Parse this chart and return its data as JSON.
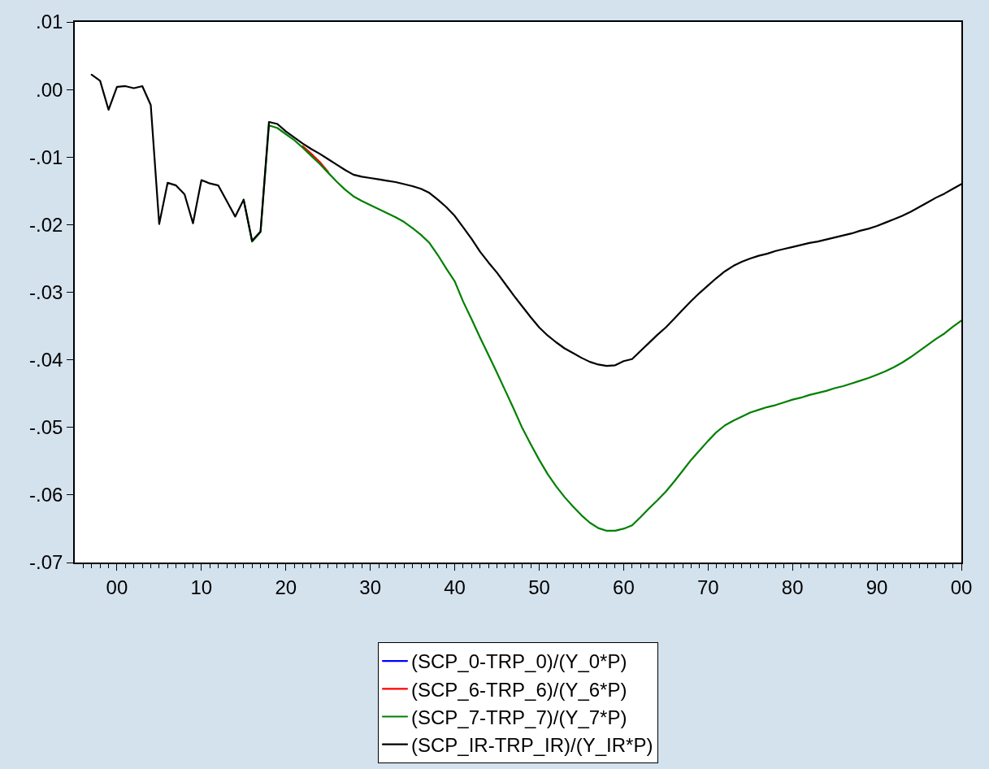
{
  "chart_data": {
    "type": "line",
    "x": [
      1997,
      1998,
      1999,
      2000,
      2001,
      2002,
      2003,
      2004,
      2005,
      2006,
      2007,
      2008,
      2009,
      2010,
      2011,
      2012,
      2013,
      2014,
      2015,
      2016,
      2017,
      2018,
      2019,
      2020,
      2021,
      2022,
      2023,
      2024,
      2025,
      2026,
      2027,
      2028,
      2029,
      2030,
      2031,
      2032,
      2033,
      2034,
      2035,
      2036,
      2037,
      2038,
      2039,
      2040,
      2041,
      2042,
      2043,
      2044,
      2045,
      2046,
      2047,
      2048,
      2049,
      2050,
      2051,
      2052,
      2053,
      2054,
      2055,
      2056,
      2057,
      2058,
      2059,
      2060,
      2061,
      2062,
      2063,
      2064,
      2065,
      2066,
      2067,
      2068,
      2069,
      2070,
      2071,
      2072,
      2073,
      2074,
      2075,
      2076,
      2077,
      2078,
      2079,
      2080,
      2081,
      2082,
      2083,
      2084,
      2085,
      2086,
      2087,
      2088,
      2089,
      2090,
      2091,
      2092,
      2093,
      2094,
      2095,
      2096,
      2097,
      2098,
      2099,
      2100
    ],
    "series": [
      {
        "name": "(SCP_0-TRP_0)/(Y_0*P)",
        "color": "#0000ff",
        "values": [
          null,
          null,
          null,
          null,
          null,
          null,
          null,
          null,
          null,
          null,
          null,
          null,
          null,
          null,
          null,
          null,
          null,
          null,
          null,
          null,
          null,
          null,
          null,
          null,
          null,
          null,
          null,
          null,
          null,
          null,
          null,
          null,
          null,
          null,
          null,
          null,
          null,
          null,
          null,
          null,
          null,
          null,
          null,
          null,
          null,
          null,
          null,
          null,
          null,
          null,
          null,
          null,
          null,
          null,
          null,
          null,
          null,
          null,
          null,
          null,
          null,
          null,
          null,
          null,
          null,
          null,
          null,
          null,
          null,
          null,
          null,
          null,
          null,
          null,
          null,
          null,
          null,
          null,
          null,
          null,
          null,
          null,
          null,
          null,
          null,
          null,
          null,
          null,
          null,
          null,
          null,
          null,
          null,
          null,
          null,
          null,
          null,
          null,
          null,
          null,
          null,
          null,
          null,
          null
        ]
      },
      {
        "name": "(SCP_6-TRP_6)/(Y_6*P)",
        "color": "#ff0000",
        "values": [
          null,
          null,
          null,
          null,
          null,
          null,
          null,
          null,
          null,
          null,
          null,
          null,
          null,
          null,
          null,
          null,
          null,
          null,
          null,
          null,
          null,
          null,
          null,
          null,
          null,
          -0.0084,
          -0.0095,
          -0.0107,
          -0.0122,
          null,
          null,
          null,
          null,
          null,
          null,
          null,
          null,
          null,
          null,
          null,
          null,
          null,
          null,
          null,
          null,
          null,
          null,
          null,
          null,
          null,
          null,
          null,
          null,
          null,
          null,
          null,
          null,
          null,
          null,
          null,
          null,
          null,
          null,
          null,
          null,
          null,
          null,
          null,
          null,
          null,
          null,
          null,
          null,
          null,
          null,
          null,
          null,
          null,
          null,
          null,
          null,
          null,
          null,
          null,
          null,
          null,
          null,
          null,
          null,
          null,
          null,
          null,
          null,
          null,
          null,
          null,
          null,
          null,
          null,
          null,
          null,
          null,
          null,
          null
        ]
      },
      {
        "name": "(SCP_7-TRP_7)/(Y_7*P)",
        "color": "#008000",
        "values": [
          null,
          null,
          null,
          null,
          null,
          null,
          null,
          null,
          null,
          null,
          null,
          null,
          null,
          null,
          null,
          null,
          null,
          null,
          -0.0163,
          -0.0225,
          -0.0211,
          -0.0053,
          -0.0057,
          -0.0066,
          -0.0075,
          -0.0086,
          -0.0098,
          -0.011,
          -0.0123,
          -0.0136,
          -0.0148,
          -0.0158,
          -0.0165,
          -0.0171,
          -0.0177,
          -0.0183,
          -0.0189,
          -0.0196,
          -0.0205,
          -0.0215,
          -0.0227,
          -0.0245,
          -0.0265,
          -0.0284,
          -0.0314,
          -0.034,
          -0.0367,
          -0.0393,
          -0.0419,
          -0.0446,
          -0.0473,
          -0.0501,
          -0.0525,
          -0.0548,
          -0.0569,
          -0.0587,
          -0.0603,
          -0.0617,
          -0.063,
          -0.0641,
          -0.0649,
          -0.0653,
          -0.0653,
          -0.065,
          -0.0645,
          -0.0633,
          -0.062,
          -0.0608,
          -0.0595,
          -0.058,
          -0.0564,
          -0.0548,
          -0.0534,
          -0.052,
          -0.0507,
          -0.0497,
          -0.049,
          -0.0484,
          -0.0478,
          -0.0474,
          -0.047,
          -0.0467,
          -0.0463,
          -0.0459,
          -0.0456,
          -0.0452,
          -0.0449,
          -0.0446,
          -0.0442,
          -0.0439,
          -0.0435,
          -0.0431,
          -0.0427,
          -0.0422,
          -0.0417,
          -0.0411,
          -0.0404,
          -0.0396,
          -0.0387,
          -0.0378,
          -0.0369,
          -0.0361,
          -0.0351,
          -0.0342
        ]
      },
      {
        "name": "(SCP_IR-TRP_IR)/(Y_IR*P)",
        "color": "#000000",
        "values": [
          0.0022,
          0.0013,
          -0.003,
          0.0004,
          0.0005,
          0.0002,
          0.0005,
          -0.0023,
          -0.0199,
          -0.0138,
          -0.0142,
          -0.0155,
          -0.0198,
          -0.0134,
          -0.0139,
          -0.0142,
          -0.0165,
          -0.0188,
          -0.0163,
          -0.0224,
          -0.021,
          -0.0048,
          -0.0051,
          -0.0062,
          -0.0071,
          -0.008,
          -0.0088,
          -0.0095,
          -0.0103,
          -0.0111,
          -0.0119,
          -0.0126,
          -0.0129,
          -0.0131,
          -0.0133,
          -0.0135,
          -0.0137,
          -0.014,
          -0.0143,
          -0.0147,
          -0.0153,
          -0.0163,
          -0.0174,
          -0.0187,
          -0.0204,
          -0.0221,
          -0.024,
          -0.0256,
          -0.0271,
          -0.0288,
          -0.0305,
          -0.0321,
          -0.0337,
          -0.0352,
          -0.0364,
          -0.0374,
          -0.0383,
          -0.039,
          -0.0397,
          -0.0403,
          -0.0407,
          -0.0409,
          -0.0408,
          -0.0402,
          -0.0399,
          -0.0387,
          -0.0375,
          -0.0363,
          -0.0352,
          -0.0339,
          -0.0326,
          -0.0313,
          -0.0301,
          -0.029,
          -0.0279,
          -0.0269,
          -0.0261,
          -0.0255,
          -0.025,
          -0.0246,
          -0.0243,
          -0.0239,
          -0.0236,
          -0.0233,
          -0.023,
          -0.0227,
          -0.0225,
          -0.0222,
          -0.0219,
          -0.0216,
          -0.0213,
          -0.0209,
          -0.0206,
          -0.0202,
          -0.0197,
          -0.0192,
          -0.0187,
          -0.0181,
          -0.0174,
          -0.0167,
          -0.016,
          -0.0154,
          -0.0147,
          -0.014
        ]
      }
    ],
    "xlim": [
      1995,
      2100
    ],
    "xticks": [
      {
        "value": 1996,
        "label": null
      },
      {
        "value": 1997,
        "label": null
      },
      {
        "value": 1998,
        "label": null
      },
      {
        "value": 1999,
        "label": null
      },
      {
        "value": 2000,
        "label": "00"
      },
      {
        "value": 2001,
        "label": null
      },
      {
        "value": 2002,
        "label": null
      },
      {
        "value": 2003,
        "label": null
      },
      {
        "value": 2004,
        "label": null
      },
      {
        "value": 2005,
        "label": null
      },
      {
        "value": 2006,
        "label": null
      },
      {
        "value": 2007,
        "label": null
      },
      {
        "value": 2008,
        "label": null
      },
      {
        "value": 2009,
        "label": null
      },
      {
        "value": 2010,
        "label": "10"
      },
      {
        "value": 2011,
        "label": null
      },
      {
        "value": 2012,
        "label": null
      },
      {
        "value": 2013,
        "label": null
      },
      {
        "value": 2014,
        "label": null
      },
      {
        "value": 2015,
        "label": null
      },
      {
        "value": 2016,
        "label": null
      },
      {
        "value": 2017,
        "label": null
      },
      {
        "value": 2018,
        "label": null
      },
      {
        "value": 2019,
        "label": null
      },
      {
        "value": 2020,
        "label": "20"
      },
      {
        "value": 2021,
        "label": null
      },
      {
        "value": 2022,
        "label": null
      },
      {
        "value": 2023,
        "label": null
      },
      {
        "value": 2024,
        "label": null
      },
      {
        "value": 2025,
        "label": null
      },
      {
        "value": 2026,
        "label": null
      },
      {
        "value": 2027,
        "label": null
      },
      {
        "value": 2028,
        "label": null
      },
      {
        "value": 2029,
        "label": null
      },
      {
        "value": 2030,
        "label": "30"
      },
      {
        "value": 2031,
        "label": null
      },
      {
        "value": 2032,
        "label": null
      },
      {
        "value": 2033,
        "label": null
      },
      {
        "value": 2034,
        "label": null
      },
      {
        "value": 2035,
        "label": null
      },
      {
        "value": 2036,
        "label": null
      },
      {
        "value": 2037,
        "label": null
      },
      {
        "value": 2038,
        "label": null
      },
      {
        "value": 2039,
        "label": null
      },
      {
        "value": 2040,
        "label": "40"
      },
      {
        "value": 2041,
        "label": null
      },
      {
        "value": 2042,
        "label": null
      },
      {
        "value": 2043,
        "label": null
      },
      {
        "value": 2044,
        "label": null
      },
      {
        "value": 2045,
        "label": null
      },
      {
        "value": 2046,
        "label": null
      },
      {
        "value": 2047,
        "label": null
      },
      {
        "value": 2048,
        "label": null
      },
      {
        "value": 2049,
        "label": null
      },
      {
        "value": 2050,
        "label": "50"
      },
      {
        "value": 2051,
        "label": null
      },
      {
        "value": 2052,
        "label": null
      },
      {
        "value": 2053,
        "label": null
      },
      {
        "value": 2054,
        "label": null
      },
      {
        "value": 2055,
        "label": null
      },
      {
        "value": 2056,
        "label": null
      },
      {
        "value": 2057,
        "label": null
      },
      {
        "value": 2058,
        "label": null
      },
      {
        "value": 2059,
        "label": null
      },
      {
        "value": 2060,
        "label": "60"
      },
      {
        "value": 2061,
        "label": null
      },
      {
        "value": 2062,
        "label": null
      },
      {
        "value": 2063,
        "label": null
      },
      {
        "value": 2064,
        "label": null
      },
      {
        "value": 2065,
        "label": null
      },
      {
        "value": 2066,
        "label": null
      },
      {
        "value": 2067,
        "label": null
      },
      {
        "value": 2068,
        "label": null
      },
      {
        "value": 2069,
        "label": null
      },
      {
        "value": 2070,
        "label": "70"
      },
      {
        "value": 2071,
        "label": null
      },
      {
        "value": 2072,
        "label": null
      },
      {
        "value": 2073,
        "label": null
      },
      {
        "value": 2074,
        "label": null
      },
      {
        "value": 2075,
        "label": null
      },
      {
        "value": 2076,
        "label": null
      },
      {
        "value": 2077,
        "label": null
      },
      {
        "value": 2078,
        "label": null
      },
      {
        "value": 2079,
        "label": null
      },
      {
        "value": 2080,
        "label": "80"
      },
      {
        "value": 2081,
        "label": null
      },
      {
        "value": 2082,
        "label": null
      },
      {
        "value": 2083,
        "label": null
      },
      {
        "value": 2084,
        "label": null
      },
      {
        "value": 2085,
        "label": null
      },
      {
        "value": 2086,
        "label": null
      },
      {
        "value": 2087,
        "label": null
      },
      {
        "value": 2088,
        "label": null
      },
      {
        "value": 2089,
        "label": null
      },
      {
        "value": 2090,
        "label": "90"
      },
      {
        "value": 2091,
        "label": null
      },
      {
        "value": 2092,
        "label": null
      },
      {
        "value": 2093,
        "label": null
      },
      {
        "value": 2094,
        "label": null
      },
      {
        "value": 2095,
        "label": null
      },
      {
        "value": 2096,
        "label": null
      },
      {
        "value": 2097,
        "label": null
      },
      {
        "value": 2098,
        "label": null
      },
      {
        "value": 2099,
        "label": null
      },
      {
        "value": 2100,
        "label": "00"
      }
    ],
    "ylim": [
      -0.07,
      0.01
    ],
    "yticks": [
      {
        "value": -0.07,
        "label": "-.07"
      },
      {
        "value": -0.06,
        "label": "-.06"
      },
      {
        "value": -0.05,
        "label": "-.05"
      },
      {
        "value": -0.04,
        "label": "-.04"
      },
      {
        "value": -0.03,
        "label": "-.03"
      },
      {
        "value": -0.02,
        "label": "-.02"
      },
      {
        "value": -0.01,
        "label": "-.01"
      },
      {
        "value": 0,
        "label": ".00"
      },
      {
        "value": 0.01,
        "label": ".01"
      }
    ],
    "grid": false,
    "legend": "bottom"
  }
}
